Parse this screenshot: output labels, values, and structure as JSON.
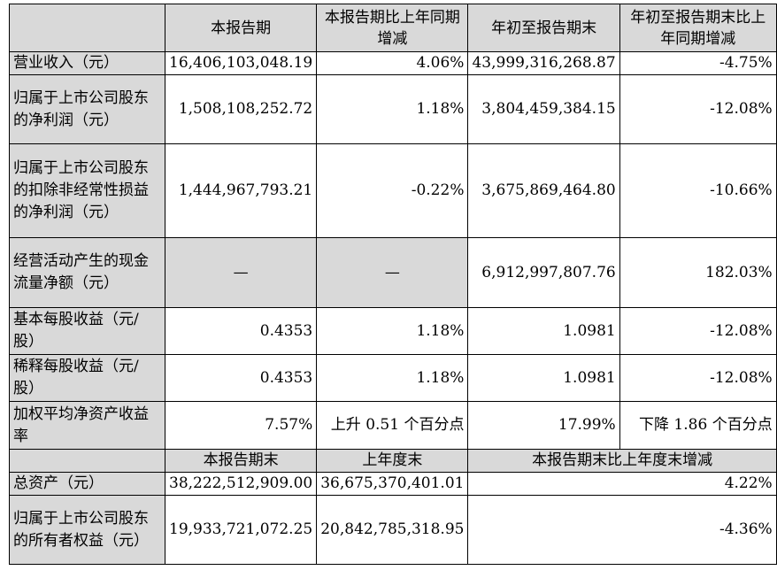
{
  "header": {
    "col1": "本报告期",
    "col2": "本报告期比上年同期增减",
    "col3": "年初至报告期末",
    "col4": "年初至报告期末比上年同期增减"
  },
  "rows": [
    {
      "label": "营业收入（元）",
      "v1": "16,406,103,048.19",
      "v2": "4.06%",
      "v3": "43,999,316,268.87",
      "v4": "-4.75%"
    },
    {
      "label": "归属于上市公司股东的净利润（元）",
      "v1": "1,508,108,252.72",
      "v2": "1.18%",
      "v3": "3,804,459,384.15",
      "v4": "-12.08%"
    },
    {
      "label": "归属于上市公司股东的扣除非经常性损益的净利润（元）",
      "v1": "1,444,967,793.21",
      "v2": "-0.22%",
      "v3": "3,675,869,464.80",
      "v4": "-10.66%"
    },
    {
      "label": "经营活动产生的现金流量净额（元）",
      "v1": "—",
      "v2": "—",
      "v3": "6,912,997,807.76",
      "v4": "182.03%"
    },
    {
      "label": "基本每股收益（元/股）",
      "v1": "0.4353",
      "v2": "1.18%",
      "v3": "1.0981",
      "v4": "-12.08%"
    },
    {
      "label": "稀释每股收益（元/股）",
      "v1": "0.4353",
      "v2": "1.18%",
      "v3": "1.0981",
      "v4": "-12.08%"
    },
    {
      "label": "加权平均净资产收益率",
      "v1": "7.57%",
      "v2": "上升 0.51 个百分点",
      "v3": "17.99%",
      "v4": "下降 1.86 个百分点"
    }
  ],
  "header2": {
    "col1": "本报告期末",
    "col2": "上年度末",
    "col3": "本报告期末比上年度末增减"
  },
  "rows2": [
    {
      "label": "总资产（元）",
      "v1": "38,222,512,909.00",
      "v2": "36,675,370,401.01",
      "v3": "4.22%"
    },
    {
      "label": "归属于上市公司股东的所有者权益（元）",
      "v1": "19,933,721,072.25",
      "v2": "20,842,785,318.95",
      "v3": "-4.36%"
    }
  ],
  "colors": {
    "header_bg": "#d9d9d9",
    "border": "#000000"
  }
}
